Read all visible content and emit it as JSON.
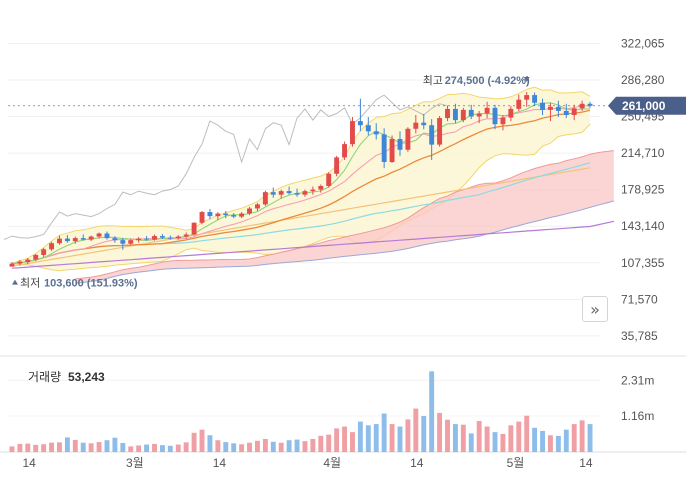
{
  "chart_data": {
    "type": "candlestick",
    "x_ticks": [
      "14",
      "3월",
      "14",
      "4월",
      "14",
      "5월",
      "14"
    ],
    "price_axis": {
      "ticks": [
        322065,
        286280,
        250495,
        214710,
        178925,
        143140,
        107355,
        71570,
        35785
      ],
      "tick_labels": [
        "322,065",
        "286,280",
        "250,495",
        "214,710",
        "178,925",
        "143,140",
        "107,355",
        "71,570",
        "35,785"
      ],
      "range": [
        20000,
        345000
      ]
    },
    "volume_axis": {
      "tick_labels": [
        "2.31m",
        "1.16m"
      ],
      "ticks": [
        2310000,
        1160000
      ],
      "range": [
        0,
        2900000
      ]
    },
    "current_price": {
      "label": "261,000",
      "value": 261000,
      "color": "#4a5f8a"
    },
    "high_annotation": {
      "label": "최고",
      "value": "274,500 (-4.92%)",
      "price": 274500
    },
    "low_annotation": {
      "label": "최저",
      "value": "103,600 (151.93%)",
      "price": 103600
    },
    "volume": {
      "label": "거래량",
      "value": "53,243"
    },
    "colors": {
      "up": "#e34b4b",
      "down": "#3f86d8",
      "vol_up": "#f0a0a4",
      "vol_down": "#8fbdea"
    },
    "candles": [
      [
        103600,
        108000,
        103600,
        106500
      ],
      [
        106500,
        110000,
        104500,
        108500
      ],
      [
        108000,
        112000,
        106000,
        110500
      ],
      [
        110500,
        116000,
        109000,
        115000
      ],
      [
        115000,
        122000,
        113000,
        120500
      ],
      [
        120500,
        128000,
        119000,
        126500
      ],
      [
        126500,
        134000,
        125000,
        131000
      ],
      [
        131000,
        134500,
        127000,
        128500
      ],
      [
        128500,
        133000,
        126000,
        131500
      ],
      [
        131500,
        135000,
        129000,
        130000
      ],
      [
        130000,
        134000,
        128500,
        133000
      ],
      [
        133000,
        137000,
        131000,
        136000
      ],
      [
        136000,
        138000,
        130000,
        131500
      ],
      [
        131500,
        133500,
        127000,
        129500
      ],
      [
        129500,
        131500,
        120000,
        126000
      ],
      [
        126000,
        131000,
        124500,
        129500
      ],
      [
        129500,
        132500,
        127000,
        131000
      ],
      [
        131000,
        133500,
        129000,
        130000
      ],
      [
        130000,
        135000,
        129000,
        133500
      ],
      [
        133500,
        135500,
        130500,
        132000
      ],
      [
        132000,
        134000,
        130000,
        131500
      ],
      [
        131500,
        134500,
        130000,
        133000
      ],
      [
        133000,
        137000,
        131000,
        135000
      ],
      [
        135000,
        147000,
        134000,
        146500
      ],
      [
        146500,
        158000,
        145000,
        157000
      ],
      [
        157000,
        160000,
        150000,
        153000
      ],
      [
        153000,
        157000,
        149000,
        155500
      ],
      [
        155500,
        158000,
        151000,
        154000
      ],
      [
        154000,
        156000,
        151000,
        152500
      ],
      [
        152500,
        157000,
        151000,
        155500
      ],
      [
        155500,
        162000,
        154000,
        160500
      ],
      [
        160500,
        166000,
        158000,
        164500
      ],
      [
        164500,
        178000,
        163000,
        176500
      ],
      [
        176500,
        181000,
        171000,
        174000
      ],
      [
        174000,
        179000,
        170000,
        177500
      ],
      [
        177500,
        182000,
        174000,
        175500
      ],
      [
        175500,
        180000,
        172000,
        174000
      ],
      [
        174000,
        179000,
        172000,
        177500
      ],
      [
        177500,
        182000,
        174000,
        179000
      ],
      [
        179000,
        184000,
        176000,
        182500
      ],
      [
        182500,
        196000,
        181000,
        194500
      ],
      [
        194500,
        212000,
        192000,
        210500
      ],
      [
        210500,
        226000,
        208000,
        223500
      ],
      [
        223500,
        250000,
        221000,
        246000
      ],
      [
        246000,
        268000,
        236000,
        242000
      ],
      [
        242000,
        250000,
        232000,
        236000
      ],
      [
        236000,
        244000,
        228000,
        233000
      ],
      [
        233000,
        239000,
        200000,
        206000
      ],
      [
        206000,
        232000,
        205000,
        228500
      ],
      [
        228500,
        236000,
        212000,
        218000
      ],
      [
        218000,
        240000,
        216000,
        238500
      ],
      [
        238500,
        252000,
        234000,
        244500
      ],
      [
        244500,
        253000,
        238000,
        242000
      ],
      [
        242000,
        248000,
        208000,
        223000
      ],
      [
        223000,
        251000,
        221000,
        249000
      ],
      [
        249000,
        261000,
        246000,
        258000
      ],
      [
        258000,
        263000,
        244000,
        247000
      ],
      [
        247000,
        259000,
        245000,
        257000
      ],
      [
        257000,
        262000,
        248000,
        250500
      ],
      [
        250500,
        256000,
        244000,
        253500
      ],
      [
        253500,
        265000,
        249000,
        259000
      ],
      [
        259000,
        262000,
        238000,
        243000
      ],
      [
        243000,
        252000,
        237000,
        249500
      ],
      [
        249500,
        261000,
        246000,
        258000
      ],
      [
        258000,
        272000,
        256000,
        267000
      ],
      [
        267000,
        274500,
        260000,
        271500
      ],
      [
        271500,
        274000,
        261000,
        264000
      ],
      [
        264000,
        268000,
        252000,
        257000
      ],
      [
        257000,
        264000,
        246000,
        260000
      ],
      [
        260000,
        266000,
        250000,
        256000
      ],
      [
        256000,
        263000,
        249000,
        252000
      ],
      [
        252000,
        262000,
        247000,
        258500
      ],
      [
        258500,
        266000,
        256000,
        263000
      ],
      [
        263000,
        265000,
        259000,
        261000
      ]
    ],
    "volumes": [
      180,
      260,
      270,
      230,
      250,
      300,
      310,
      470,
      390,
      300,
      280,
      320,
      380,
      460,
      290,
      180,
      210,
      240,
      260,
      220,
      200,
      240,
      310,
      620,
      720,
      540,
      380,
      320,
      280,
      250,
      300,
      360,
      420,
      330,
      300,
      380,
      400,
      350,
      420,
      520,
      560,
      760,
      820,
      640,
      980,
      860,
      900,
      1240,
      900,
      820,
      1050,
      1400,
      1160,
      2600,
      1260,
      1040,
      900,
      880,
      600,
      1000,
      820,
      640,
      580,
      860,
      980,
      1170,
      780,
      680,
      540,
      520,
      720,
      900,
      1020,
      900
    ]
  }
}
